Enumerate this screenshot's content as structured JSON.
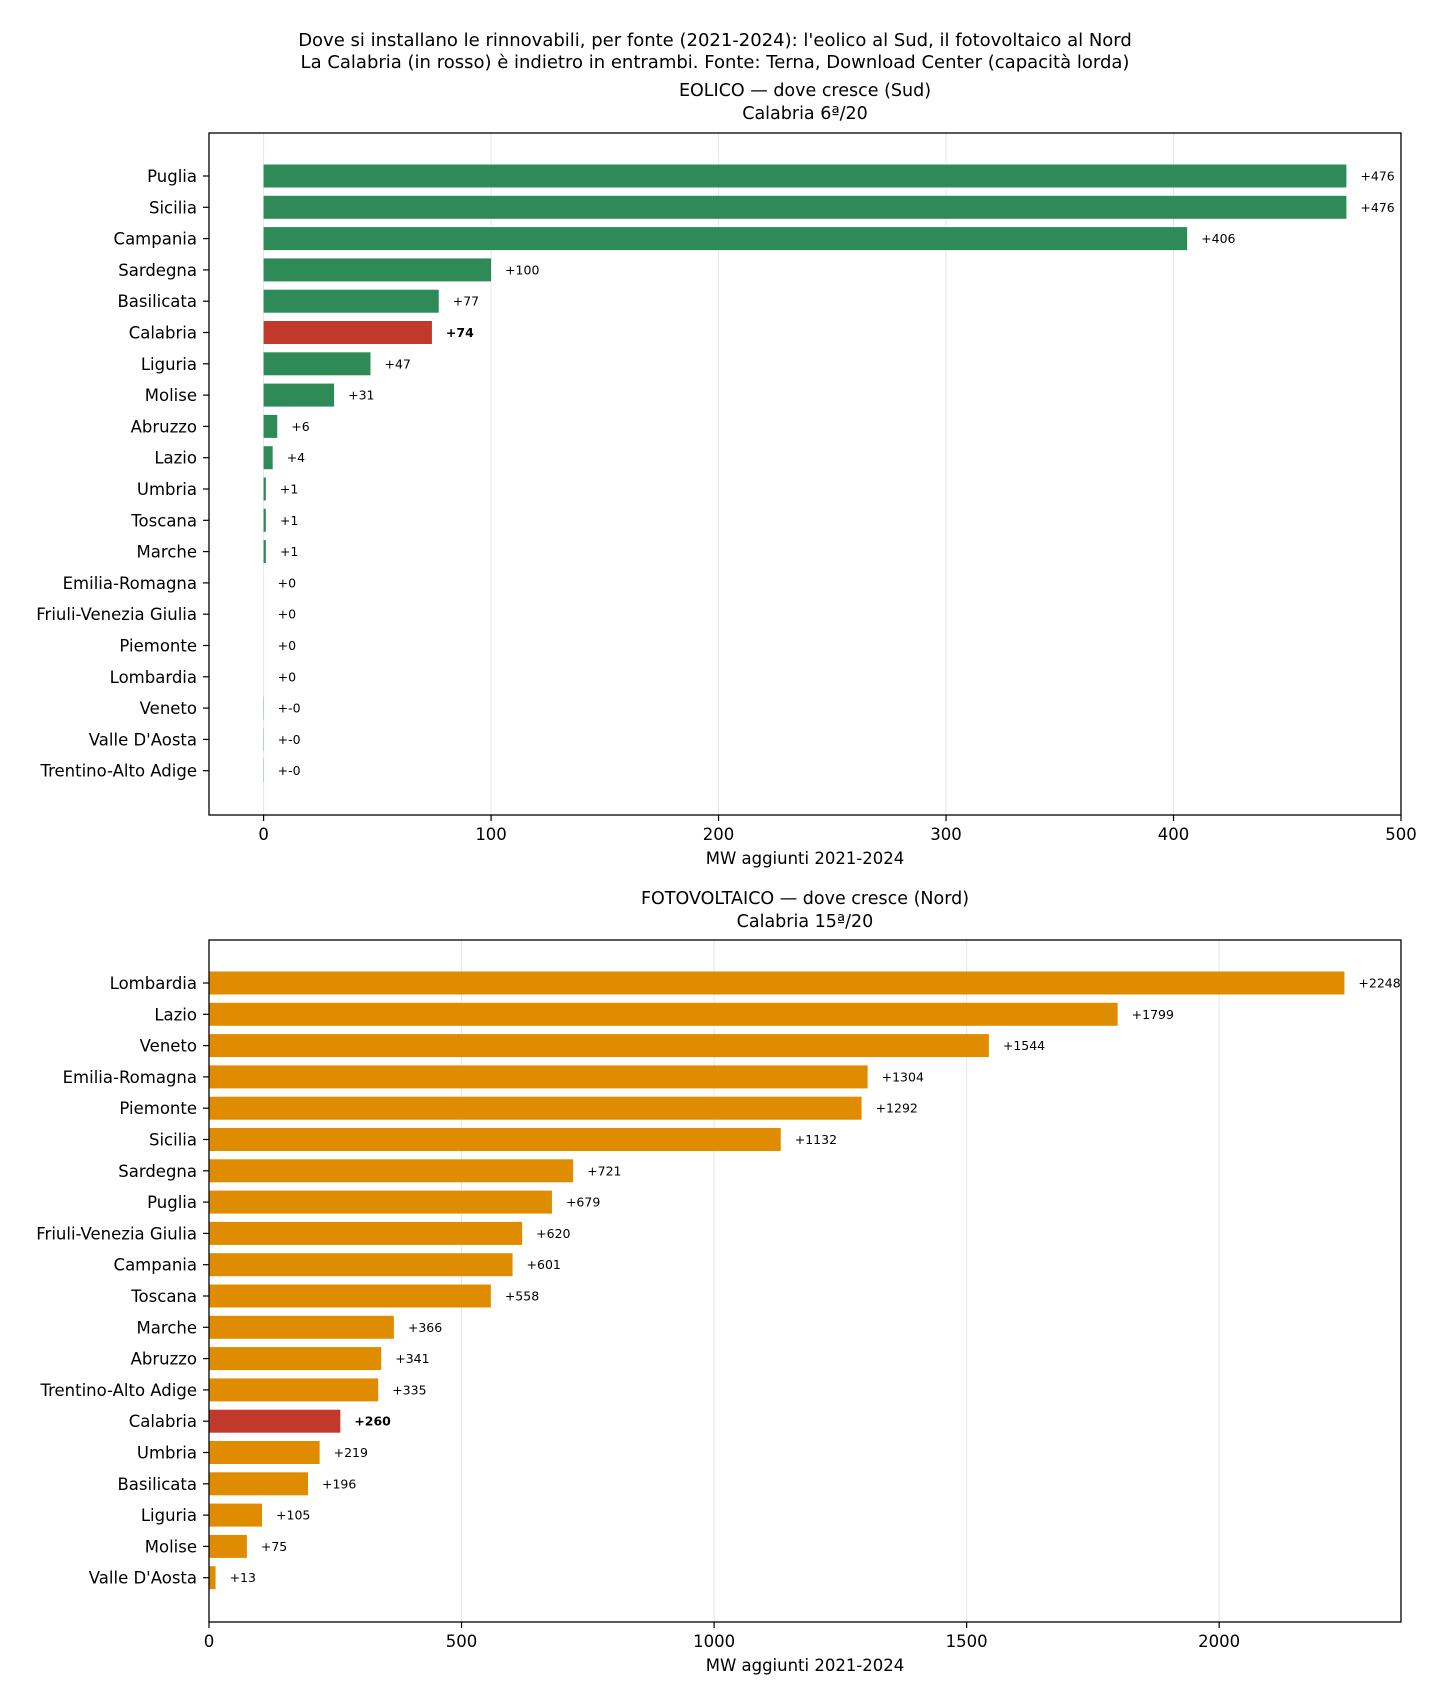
{
  "figure": {
    "title_line1": "Dove si installano le rinnovabili, per fonte (2021-2024): l'eolico al Sud, il fotovoltaico al Nord",
    "title_line2": "La Calabria (in rosso) è indietro in entrambi. Fonte: Terna, Download Center (capacità lorda)"
  },
  "colors": {
    "highlight": "#c0392b",
    "eolico": "#2e8b57",
    "fotovoltaico": "#e08c00",
    "grid": "#e6e6e6",
    "axis": "#000000"
  },
  "chart_data": [
    {
      "type": "bar",
      "orientation": "horizontal",
      "title": "EOLICO — dove cresce (Sud)",
      "subtitle": "Calabria 6ª/20",
      "xlabel": "MW aggiunti 2021-2024",
      "ylabel": "",
      "xlim": [
        -24,
        500
      ],
      "xticks": [
        0,
        100,
        200,
        300,
        400,
        500
      ],
      "grid": "x",
      "highlight_category": "Calabria",
      "categories": [
        "Puglia",
        "Sicilia",
        "Campania",
        "Sardegna",
        "Basilicata",
        "Calabria",
        "Liguria",
        "Molise",
        "Abruzzo",
        "Lazio",
        "Umbria",
        "Toscana",
        "Marche",
        "Emilia-Romagna",
        "Friuli-Venezia Giulia",
        "Piemonte",
        "Lombardia",
        "Veneto",
        "Valle D'Aosta",
        "Trentino-Alto Adige"
      ],
      "values": [
        476,
        476,
        406,
        100,
        77,
        74,
        47,
        31,
        6,
        4,
        1,
        1,
        1,
        0,
        0,
        0,
        0,
        -0.1,
        -0.1,
        -0.1
      ],
      "data_labels": [
        "+476",
        "+476",
        "+406",
        "+100",
        "+77",
        "+74",
        "+47",
        "+31",
        "+6",
        "+4",
        "+1",
        "+1",
        "+1",
        "+0",
        "+0",
        "+0",
        "+0",
        "+-0",
        "+-0",
        "+-0"
      ]
    },
    {
      "type": "bar",
      "orientation": "horizontal",
      "title": "FOTOVOLTAICO — dove cresce (Nord)",
      "subtitle": "Calabria 15ª/20",
      "xlabel": "MW aggiunti 2021-2024",
      "ylabel": "",
      "xlim": [
        0,
        2360
      ],
      "xticks": [
        0,
        500,
        1000,
        1500,
        2000
      ],
      "grid": "x",
      "highlight_category": "Calabria",
      "categories": [
        "Lombardia",
        "Lazio",
        "Veneto",
        "Emilia-Romagna",
        "Piemonte",
        "Sicilia",
        "Sardegna",
        "Puglia",
        "Friuli-Venezia Giulia",
        "Campania",
        "Toscana",
        "Marche",
        "Abruzzo",
        "Trentino-Alto Adige",
        "Calabria",
        "Umbria",
        "Basilicata",
        "Liguria",
        "Molise",
        "Valle D'Aosta"
      ],
      "values": [
        2248,
        1799,
        1544,
        1304,
        1292,
        1132,
        721,
        679,
        620,
        601,
        558,
        366,
        341,
        335,
        260,
        219,
        196,
        105,
        75,
        13
      ],
      "data_labels": [
        "+2248",
        "+1799",
        "+1544",
        "+1304",
        "+1292",
        "+1132",
        "+721",
        "+679",
        "+620",
        "+601",
        "+558",
        "+366",
        "+341",
        "+335",
        "+260",
        "+219",
        "+196",
        "+105",
        "+75",
        "+13"
      ]
    }
  ]
}
